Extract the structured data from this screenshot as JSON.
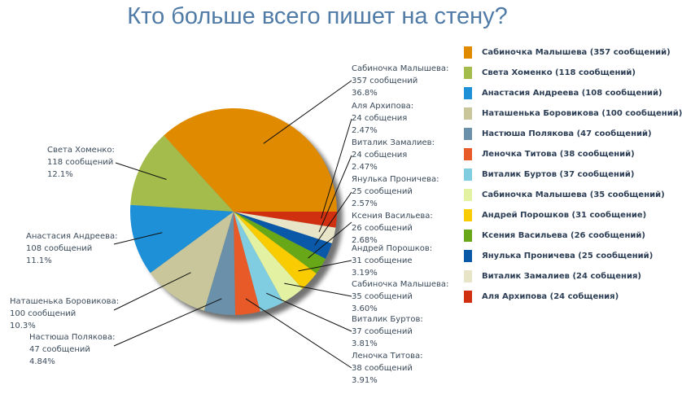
{
  "chart_data": {
    "type": "pie",
    "title": "Кто больше всего пишет на стену?",
    "legend_position": "right",
    "slices": [
      {
        "name": "Сабиночка Малышева",
        "value": 357,
        "value_label": "357 сообщений",
        "percent": "36.8%",
        "legend": "Сабиночка Малышева (357 сообщений)",
        "color": "#e08a00"
      },
      {
        "name": "Света Хоменко",
        "value": 118,
        "value_label": "118 сообщений",
        "percent": "12.1%",
        "legend": "Света Хоменко (118 сообщений)",
        "color": "#a4bc4c"
      },
      {
        "name": "Анастасия Андреева",
        "value": 108,
        "value_label": "108 сообщений",
        "percent": "11.1%",
        "legend": "Анастасия Андреева (108 сообщений)",
        "color": "#1e90d8"
      },
      {
        "name": "Наташенька Боровикова",
        "value": 100,
        "value_label": "100 сообщений",
        "percent": "10.3%",
        "legend": "Наташенька Боровикова (100 сообщений)",
        "color": "#c8c69a"
      },
      {
        "name": "Настюша Полякова",
        "value": 47,
        "value_label": "47 сообщений",
        "percent": "4.84%",
        "legend": "Настюша Полякова (47 сообщений)",
        "color": "#6a90aa"
      },
      {
        "name": "Леночка Титова",
        "value": 38,
        "value_label": "38 сообщений",
        "percent": "3.91%",
        "legend": "Леночка Титова (38 сообщений)",
        "color": "#e85a28"
      },
      {
        "name": "Виталик Буртов",
        "value": 37,
        "value_label": "37 сообщений",
        "percent": "3.81%",
        "legend": "Виталик Буртов (37 сообщений)",
        "color": "#80cce0"
      },
      {
        "name": "Сабиночка Малышева",
        "value": 35,
        "value_label": "35 сообщений",
        "percent": "3.60%",
        "legend": "Сабиночка Малышева (35 сообщений)",
        "color": "#e2f2a2"
      },
      {
        "name": "Андрей Порошков",
        "value": 31,
        "value_label": "31 сообщение",
        "percent": "3.19%",
        "legend": "Андрей Порошков (31 сообщение)",
        "color": "#f8cc00"
      },
      {
        "name": "Ксения Васильева",
        "value": 26,
        "value_label": "26 сообщений",
        "percent": "2.68%",
        "legend": "Ксения Васильева (26 сообщений)",
        "color": "#68a818"
      },
      {
        "name": "Янулька Проничева",
        "value": 25,
        "value_label": "25 сообщений",
        "percent": "2.57%",
        "legend": "Янулька Проничева (25 сообщений)",
        "color": "#0a58a8"
      },
      {
        "name": "Виталик Замалиев",
        "value": 24,
        "value_label": "24 собщения",
        "percent": "2.47%",
        "legend": "Виталик Замалиев (24 собщения)",
        "color": "#e8e4c8"
      },
      {
        "name": "Аля Архипова",
        "value": 24,
        "value_label": "24 собщения",
        "percent": "2.47%",
        "legend": "Аля Архипова (24 собщения)",
        "color": "#d03010"
      }
    ]
  }
}
